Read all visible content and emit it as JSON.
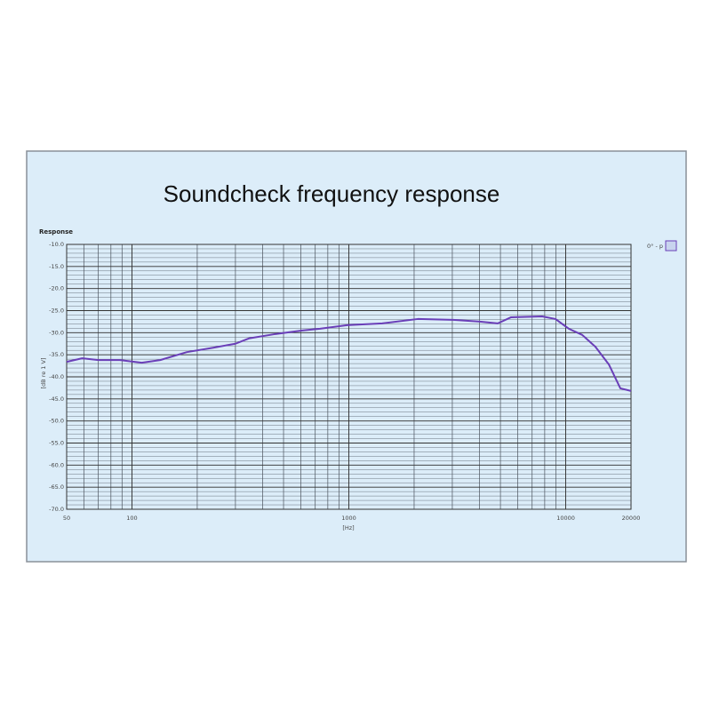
{
  "chart_data": {
    "type": "line",
    "title": "Soundcheck frequency response",
    "subtitle": "Response",
    "xlabel": "[Hz]",
    "ylabel": "[dB re 1 V]",
    "xscale": "log",
    "xlim": [
      50,
      20000
    ],
    "ylim": [
      -70,
      -10
    ],
    "xticks": [
      50,
      100,
      1000,
      10000,
      20000
    ],
    "yticks": [
      {
        "value": -10,
        "label": "-10.0"
      },
      {
        "value": -15,
        "label": "-15.0"
      },
      {
        "value": -20,
        "label": "-20.0"
      },
      {
        "value": -25,
        "label": "-25.0"
      },
      {
        "value": -30,
        "label": "-30.0"
      },
      {
        "value": -35,
        "label": "-35.0"
      },
      {
        "value": -40,
        "label": "-40.0"
      },
      {
        "value": -45,
        "label": "-45.0"
      },
      {
        "value": -50,
        "label": "-50.0"
      },
      {
        "value": -55,
        "label": "-55.0"
      },
      {
        "value": -60,
        "label": "-60.0"
      },
      {
        "value": -65,
        "label": "-65.0"
      },
      {
        "value": -70,
        "label": "-70.0"
      }
    ],
    "grid": true,
    "minor_grid": true,
    "y_minor_step": 1,
    "legend": "top-right",
    "x": [
      50,
      59,
      70,
      88,
      111,
      135,
      179,
      237,
      300,
      346,
      459,
      609,
      736,
      980,
      1425,
      2078,
      3030,
      4025,
      4860,
      5600,
      7780,
      8970,
      10330,
      11910,
      13710,
      15810,
      17860,
      20000
    ],
    "series": [
      {
        "name": "0° - p",
        "color": "#6a3fb8",
        "values": [
          -36.6,
          -35.8,
          -36.2,
          -36.2,
          -36.8,
          -36.2,
          -34.4,
          -33.4,
          -32.5,
          -31.3,
          -30.3,
          -29.5,
          -29.1,
          -28.3,
          -27.9,
          -26.9,
          -27.1,
          -27.5,
          -27.9,
          -26.5,
          -26.3,
          -26.9,
          -29.1,
          -30.5,
          -33.2,
          -37.2,
          -42.6,
          -43.2
        ]
      }
    ]
  }
}
